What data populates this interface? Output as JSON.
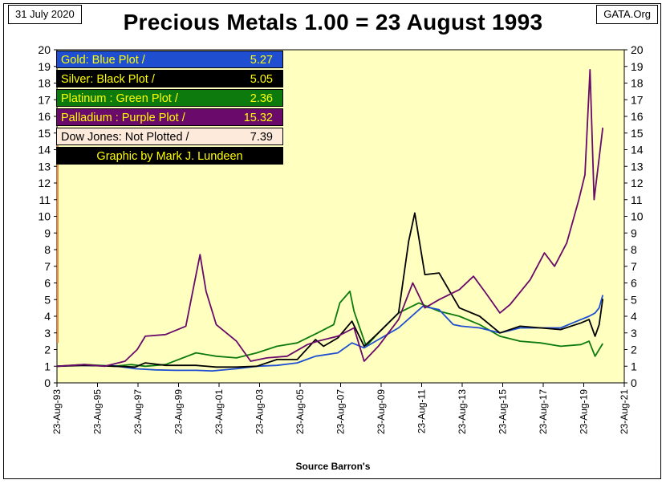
{
  "header": {
    "date": "31 July 2020",
    "site": "GATA.Org",
    "title": "Precious Metals  1.00 = 23 August 1993"
  },
  "footer": {
    "source": "Source Barron's"
  },
  "legend": [
    {
      "label": "Gold: Blue Plot /",
      "value": "5.27",
      "bg": "#1f4fd0",
      "fg": "#ffff00"
    },
    {
      "label": "Silver: Black Plot /",
      "value": "5.05",
      "bg": "#000000",
      "fg": "#ffff00"
    },
    {
      "label": "Platinum : Green Plot /",
      "value": "2.36",
      "bg": "#0c7a0c",
      "fg": "#ffff00"
    },
    {
      "label": "Palladium : Purple Plot /",
      "value": "15.32",
      "bg": "#6a0a6a",
      "fg": "#ffff00"
    },
    {
      "label": "Dow Jones: Not Plotted /",
      "value": "7.39",
      "bg": "#fdeada",
      "fg": "#000000"
    },
    {
      "label": "Graphic by Mark J. Lundeen",
      "value": "",
      "bg": "#000000",
      "fg": "#ffff00"
    }
  ],
  "chart_data": {
    "type": "line",
    "title": "Precious Metals  1.00 = 23 August 1993",
    "xlabel": "Source Barron's",
    "ylabel": "",
    "ylim": [
      0,
      20
    ],
    "xlim": [
      1993.64,
      2021.64
    ],
    "yticks": [
      "0",
      "1",
      "2",
      "3",
      "4",
      "5",
      "6",
      "7",
      "8",
      "9",
      "10",
      "11",
      "12",
      "13",
      "14",
      "15",
      "16",
      "17",
      "18",
      "19",
      "20"
    ],
    "xtick_labels": [
      "23-Aug-93",
      "23-Aug-95",
      "23-Aug-97",
      "23-Aug-99",
      "23-Aug-01",
      "23-Aug-03",
      "23-Aug-05",
      "23-Aug-07",
      "23-Aug-09",
      "23-Aug-11",
      "23-Aug-13",
      "23-Aug-15",
      "23-Aug-17",
      "23-Aug-19",
      "23-Aug-21"
    ],
    "xtick_years": [
      1993.64,
      1995.64,
      1997.64,
      1999.64,
      2001.64,
      2003.64,
      2005.64,
      2007.64,
      2009.64,
      2011.64,
      2013.64,
      2015.64,
      2017.64,
      2019.64,
      2021.64
    ],
    "colors": {
      "plot_bg": "#ffffc0",
      "gold": "#1f4fd0",
      "silver": "#000000",
      "platinum": "#0c7a0c",
      "palladium": "#6a0a6a"
    },
    "series": [
      {
        "name": "Gold",
        "color": "#1f4fd0",
        "x": [
          1993.64,
          1994.5,
          1995.5,
          1996.5,
          1997.5,
          1998.5,
          1999.5,
          2000.5,
          2001.3,
          2002.5,
          2003.5,
          2004.5,
          2005.5,
          2006.4,
          2007.5,
          2008.2,
          2008.8,
          2009.5,
          2010.5,
          2011.7,
          2012.5,
          2013.2,
          2013.6,
          2014.5,
          2015.5,
          2016.5,
          2017.5,
          2018.5,
          2019.3,
          2019.9,
          2020.2,
          2020.4,
          2020.58
        ],
        "y": [
          1.0,
          1.05,
          1.03,
          1.02,
          0.85,
          0.78,
          0.75,
          0.75,
          0.72,
          0.85,
          1.0,
          1.05,
          1.2,
          1.6,
          1.8,
          2.4,
          2.1,
          2.6,
          3.3,
          4.6,
          4.4,
          3.5,
          3.4,
          3.3,
          3.0,
          3.3,
          3.3,
          3.3,
          3.7,
          4.0,
          4.2,
          4.5,
          5.27
        ]
      },
      {
        "name": "Platinum",
        "color": "#0c7a0c",
        "x": [
          1993.64,
          1995.0,
          1996.5,
          1997.3,
          1998.0,
          1999.0,
          2000.5,
          2001.5,
          2002.5,
          2003.5,
          2004.5,
          2005.5,
          2006.5,
          2007.3,
          2007.6,
          2008.1,
          2008.3,
          2008.9,
          2009.5,
          2010.5,
          2011.5,
          2012.5,
          2013.5,
          2014.5,
          2015.5,
          2016.5,
          2017.5,
          2018.5,
          2019.5,
          2019.9,
          2020.2,
          2020.58
        ],
        "y": [
          1.0,
          1.1,
          1.0,
          1.1,
          1.0,
          1.1,
          1.8,
          1.6,
          1.5,
          1.8,
          2.2,
          2.4,
          3.0,
          3.5,
          4.8,
          5.5,
          4.3,
          2.2,
          3.0,
          4.2,
          4.8,
          4.3,
          4.0,
          3.5,
          2.8,
          2.5,
          2.4,
          2.2,
          2.3,
          2.5,
          1.6,
          2.36
        ]
      },
      {
        "name": "Silver",
        "color": "#000000",
        "x": [
          1993.64,
          1995.0,
          1996.5,
          1997.5,
          1998.0,
          1999.0,
          2000.5,
          2001.5,
          2002.5,
          2003.5,
          2004.5,
          2005.5,
          2006.4,
          2006.8,
          2007.5,
          2008.2,
          2008.8,
          2009.5,
          2010.5,
          2011.0,
          2011.3,
          2011.8,
          2012.5,
          2013.5,
          2014.5,
          2015.5,
          2016.5,
          2017.5,
          2018.5,
          2019.5,
          2019.9,
          2020.2,
          2020.4,
          2020.58
        ],
        "y": [
          1.0,
          1.05,
          1.0,
          0.95,
          1.2,
          1.05,
          1.05,
          0.95,
          0.95,
          1.0,
          1.4,
          1.4,
          2.6,
          2.2,
          2.7,
          3.7,
          2.2,
          3.0,
          4.2,
          8.5,
          10.2,
          6.5,
          6.6,
          4.5,
          4.0,
          3.0,
          3.4,
          3.3,
          3.2,
          3.6,
          3.8,
          2.8,
          3.5,
          5.05
        ]
      },
      {
        "name": "Palladium",
        "color": "#6a0a6a",
        "x": [
          1993.64,
          1995.0,
          1996.0,
          1997.0,
          1997.6,
          1998.0,
          1999.0,
          2000.0,
          2000.7,
          2001.0,
          2001.5,
          2002.5,
          2003.2,
          2004.0,
          2005.0,
          2006.0,
          2006.5,
          2007.5,
          2008.3,
          2008.8,
          2009.5,
          2010.5,
          2011.2,
          2011.8,
          2012.5,
          2013.5,
          2014.2,
          2014.8,
          2015.5,
          2016.0,
          2017.0,
          2017.7,
          2018.2,
          2018.8,
          2019.4,
          2019.7,
          2019.95,
          2020.15,
          2020.4,
          2020.58
        ],
        "y": [
          1.0,
          1.1,
          1.0,
          1.3,
          2.0,
          2.8,
          2.9,
          3.4,
          7.7,
          5.5,
          3.5,
          2.5,
          1.3,
          1.5,
          1.6,
          2.3,
          2.5,
          2.8,
          3.3,
          1.3,
          2.2,
          3.8,
          6.0,
          4.5,
          5.0,
          5.6,
          6.4,
          5.4,
          4.2,
          4.7,
          6.2,
          7.8,
          7.0,
          8.4,
          11.0,
          12.5,
          18.8,
          11.0,
          13.5,
          15.32
        ]
      }
    ]
  }
}
